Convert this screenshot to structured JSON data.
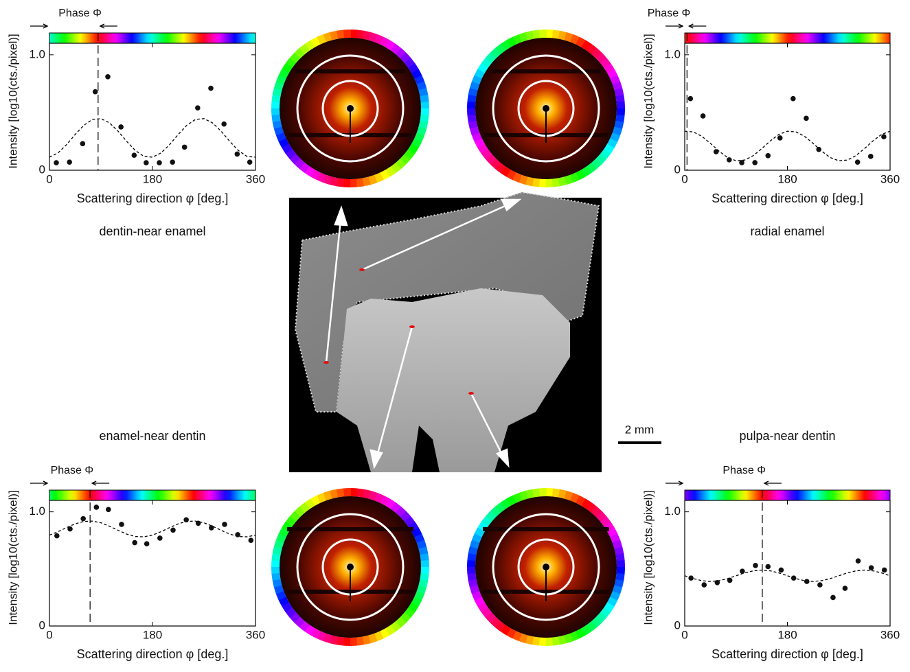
{
  "chart_data": [
    {
      "type": "scatter",
      "caption": "dentin-near enamel",
      "phase_label": "Phase Φ",
      "phase": 85,
      "xlabel": "Scattering direction φ [deg.]",
      "ylabel": "Intensity [log10(cts./pixel)]",
      "xlim": [
        0,
        360
      ],
      "ylim": [
        0,
        1.1
      ],
      "xticks": [
        0,
        180,
        360
      ],
      "yticks": [
        0,
        {
          "value": 1,
          "label": "1.0"
        }
      ],
      "color": "#111111",
      "x": [
        12,
        35,
        58,
        80,
        102,
        125,
        148,
        169,
        192,
        215,
        236,
        259,
        282,
        305,
        328,
        350
      ],
      "values": [
        0.065,
        0.07,
        0.23,
        0.68,
        0.81,
        0.375,
        0.13,
        0.065,
        0.065,
        0.07,
        0.2,
        0.54,
        0.71,
        0.4,
        0.14,
        0.07
      ],
      "fit": {
        "x": [
          0,
          15,
          30,
          45,
          60,
          75,
          90,
          105,
          120,
          135,
          150,
          165,
          180,
          195,
          210,
          225,
          240,
          255,
          270,
          285,
          300,
          315,
          330,
          345,
          360
        ],
        "values": [
          0.113,
          0.15,
          0.222,
          0.31,
          0.389,
          0.44,
          0.447,
          0.41,
          0.338,
          0.25,
          0.171,
          0.12,
          0.113,
          0.15,
          0.222,
          0.31,
          0.389,
          0.44,
          0.447,
          0.41,
          0.338,
          0.25,
          0.171,
          0.12,
          0.113
        ]
      }
    },
    {
      "type": "scatter",
      "caption": "radial enamel",
      "phase_label": "Phase Φ",
      "phase": 4,
      "xlabel": "Scattering direction φ [deg.]",
      "ylabel": "Intensity [log10(cts./pixel)]",
      "xlim": [
        0,
        360
      ],
      "ylim": [
        0,
        1.1
      ],
      "xticks": [
        0,
        180,
        360
      ],
      "yticks": [
        0,
        {
          "value": 1,
          "label": "1.0"
        }
      ],
      "color": "#111111",
      "x": [
        10,
        32,
        55,
        78,
        100,
        123,
        146,
        167,
        190,
        213,
        235,
        303,
        326,
        349
      ],
      "values": [
        0.62,
        0.47,
        0.16,
        0.09,
        0.066,
        0.066,
        0.126,
        0.28,
        0.62,
        0.45,
        0.18,
        0.07,
        0.12,
        0.29
      ],
      "fit": {
        "x": [
          0,
          15,
          30,
          45,
          60,
          75,
          90,
          105,
          120,
          135,
          150,
          165,
          180,
          195,
          210,
          225,
          240,
          255,
          270,
          285,
          300,
          315,
          330,
          345,
          360
        ],
        "values": [
          0.338,
          0.332,
          0.294,
          0.233,
          0.166,
          0.11,
          0.082,
          0.088,
          0.126,
          0.187,
          0.254,
          0.31,
          0.338,
          0.332,
          0.294,
          0.233,
          0.166,
          0.11,
          0.082,
          0.088,
          0.126,
          0.187,
          0.254,
          0.31,
          0.338
        ]
      }
    },
    {
      "type": "scatter",
      "caption": "enamel-near dentin",
      "phase_label": "Phase Φ",
      "phase": 71,
      "xlabel": "Scattering direction φ [deg.]",
      "ylabel": "Intensity [log10(cts./pixel)]",
      "xlim": [
        0,
        360
      ],
      "ylim": [
        0,
        1.1
      ],
      "xticks": [
        0,
        180,
        360
      ],
      "yticks": [
        0,
        {
          "value": 1,
          "label": "1.0"
        }
      ],
      "color": "#111111",
      "x": [
        13,
        36,
        59,
        82,
        103,
        126,
        149,
        170,
        193,
        216,
        239,
        260,
        283,
        306,
        329,
        352
      ],
      "values": [
        0.79,
        0.85,
        0.94,
        1.04,
        1.02,
        0.89,
        0.73,
        0.72,
        0.77,
        0.84,
        0.93,
        0.9,
        0.86,
        0.89,
        0.8,
        0.75
      ],
      "fit": {
        "x": [
          0,
          15,
          30,
          45,
          60,
          75,
          90,
          105,
          120,
          135,
          150,
          165,
          180,
          195,
          210,
          225,
          240,
          255,
          270,
          285,
          300,
          315,
          330,
          345,
          360
        ],
        "values": [
          0.796,
          0.826,
          0.862,
          0.895,
          0.916,
          0.919,
          0.904,
          0.874,
          0.838,
          0.805,
          0.784,
          0.781,
          0.796,
          0.826,
          0.862,
          0.895,
          0.916,
          0.919,
          0.904,
          0.874,
          0.838,
          0.805,
          0.784,
          0.781,
          0.796
        ]
      }
    },
    {
      "type": "scatter",
      "caption": "pulpa-near dentin",
      "phase_label": "Phase Φ",
      "phase": 136,
      "xlabel": "Scattering direction φ [deg.]",
      "ylabel": "Intensity [log10(cts./pixel)]",
      "xlim": [
        0,
        360
      ],
      "ylim": [
        0,
        1.1
      ],
      "xticks": [
        0,
        180,
        360
      ],
      "yticks": [
        0,
        {
          "value": 1,
          "label": "1.0"
        }
      ],
      "color": "#111111",
      "x": [
        11,
        34,
        57,
        79,
        101,
        124,
        146,
        169,
        191,
        214,
        237,
        260,
        281,
        304,
        327,
        350
      ],
      "values": [
        0.42,
        0.36,
        0.38,
        0.4,
        0.48,
        0.53,
        0.52,
        0.49,
        0.42,
        0.39,
        0.36,
        0.25,
        0.33,
        0.57,
        0.51,
        0.49
      ],
      "fit": {
        "x": [
          0,
          15,
          30,
          45,
          60,
          75,
          90,
          105,
          120,
          135,
          150,
          165,
          180,
          195,
          210,
          225,
          240,
          255,
          270,
          285,
          300,
          315,
          330,
          345,
          360
        ],
        "values": [
          0.44,
          0.415,
          0.397,
          0.39,
          0.397,
          0.415,
          0.44,
          0.465,
          0.483,
          0.49,
          0.483,
          0.465,
          0.44,
          0.415,
          0.397,
          0.39,
          0.397,
          0.415,
          0.44,
          0.465,
          0.483,
          0.49,
          0.483,
          0.465,
          0.44
        ]
      }
    }
  ],
  "scale_bar": "2 mm"
}
